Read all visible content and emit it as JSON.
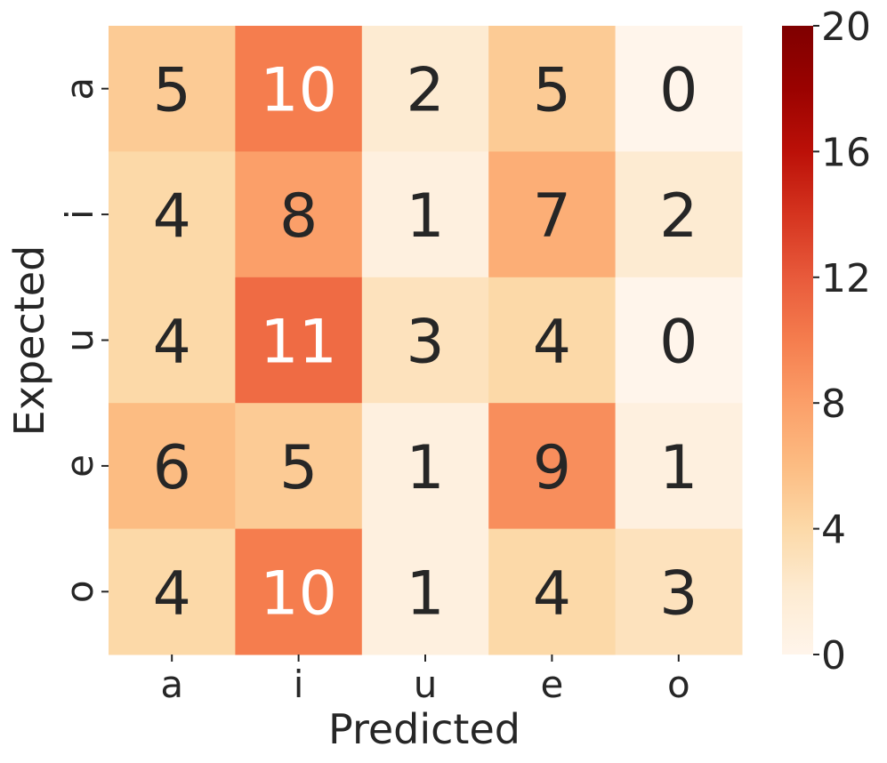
{
  "chart_data": {
    "type": "heatmap",
    "title": "",
    "xlabel": "Predicted",
    "ylabel": "Expected",
    "x_categories": [
      "a",
      "i",
      "u",
      "e",
      "o"
    ],
    "y_categories": [
      "a",
      "i",
      "u",
      "e",
      "o"
    ],
    "values": [
      [
        5,
        10,
        2,
        5,
        0
      ],
      [
        4,
        8,
        1,
        7,
        2
      ],
      [
        4,
        11,
        3,
        4,
        0
      ],
      [
        6,
        5,
        1,
        9,
        1
      ],
      [
        4,
        10,
        1,
        4,
        3
      ]
    ],
    "colorbar": {
      "min": 0,
      "max": 20,
      "ticks": [
        "0",
        "4",
        "8",
        "12",
        "16",
        "20"
      ],
      "colormap": "OrRd-like (cream to dark red)"
    },
    "colors": {
      "low": "#fff5eb",
      "high": "#7f0000",
      "text_dark": "#262626",
      "text_light": "#ffffff"
    }
  }
}
